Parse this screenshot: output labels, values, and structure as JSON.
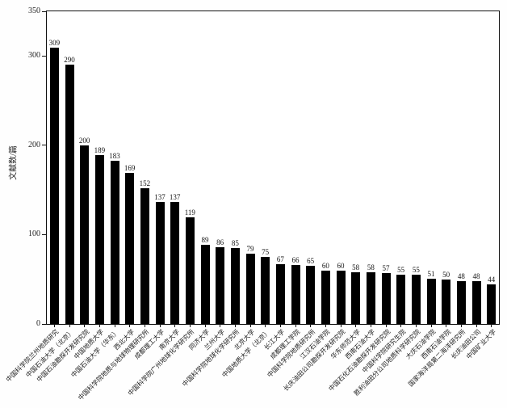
{
  "figure": {
    "background": "#fefefe",
    "frame_color": "#111111"
  },
  "chart_data": {
    "type": "bar",
    "title": "",
    "xlabel": "",
    "ylabel": "文献数/篇",
    "ylim": [
      0,
      350
    ],
    "yticks": [
      0,
      100,
      200,
      300,
      350
    ],
    "grid": false,
    "legend": false,
    "bar_color": "#000000",
    "value_labels_shown": true,
    "x_label_rotation_deg": 45,
    "categories": [
      "中国科学院兰州地质研究",
      "中国石油大学（北京）",
      "中国石油勘探开发研究院",
      "中国地质大学",
      "中国石油大学（华东）",
      "西北大学",
      "中国科学院地质与地球物理研究所",
      "成都理工大学",
      "南京大学",
      "中国科学院广州地球化学研究所",
      "同济大学",
      "兰州大学",
      "中国科学院地球化学研究所",
      "北京大学",
      "中国地质大学（北京）",
      "长江大学",
      "成都理工学院",
      "中国科学院地质研究所",
      "江汉石油学院",
      "长庆油田公司勘探开发研究院",
      "华东师范大学",
      "西南石油大学",
      "中国石化石油勘探开发研究院",
      "中国科学院研究生院",
      "胜利油田分公司地质科学研究院",
      "大庆石油学院",
      "西南石油学院",
      "国家海洋局第二海洋研究所",
      "长庆油田公司",
      "中国矿业大学"
    ],
    "values": [
      309,
      290,
      200,
      189,
      183,
      169,
      152,
      137,
      137,
      119,
      89,
      86,
      85,
      79,
      75,
      67,
      66,
      65,
      60,
      60,
      58,
      58,
      57,
      55,
      55,
      51,
      50,
      48,
      48,
      44
    ]
  }
}
